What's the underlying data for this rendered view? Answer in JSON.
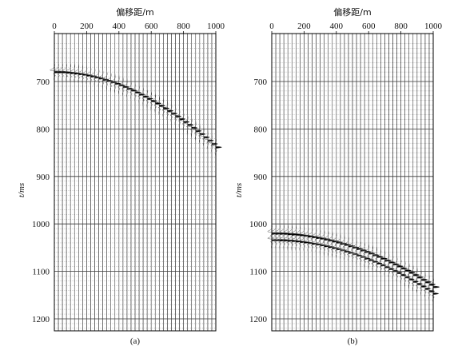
{
  "chart_data": [
    {
      "type": "seismic-wiggle",
      "panel_label": "(a)",
      "xlabel": "偏移距/m",
      "ylabel": "t/ms",
      "xlim": [
        0,
        1000
      ],
      "ylim": [
        620,
        1225
      ],
      "y_inverted": true,
      "x_ticks": [
        0,
        200,
        400,
        600,
        800,
        1000
      ],
      "y_ticks": [
        700,
        800,
        900,
        1000,
        1100,
        1200
      ],
      "y_minor_step": 10,
      "trace_spacing": 25,
      "events": [
        {
          "t0": 680,
          "velocity": 2040,
          "wavelets": 1
        }
      ],
      "grid": true
    },
    {
      "type": "seismic-wiggle",
      "panel_label": "(b)",
      "xlabel": "偏移距/m",
      "ylabel": "t/ms",
      "xlim": [
        0,
        1000
      ],
      "ylim": [
        620,
        1225
      ],
      "y_inverted": true,
      "x_ticks": [
        0,
        200,
        400,
        600,
        800,
        1000
      ],
      "y_ticks": [
        700,
        800,
        900,
        1000,
        1100,
        1200
      ],
      "y_minor_step": 10,
      "trace_spacing": 25,
      "events": [
        {
          "t0": 1020,
          "velocity": 2030,
          "wavelets": 2
        }
      ],
      "grid": true
    }
  ]
}
